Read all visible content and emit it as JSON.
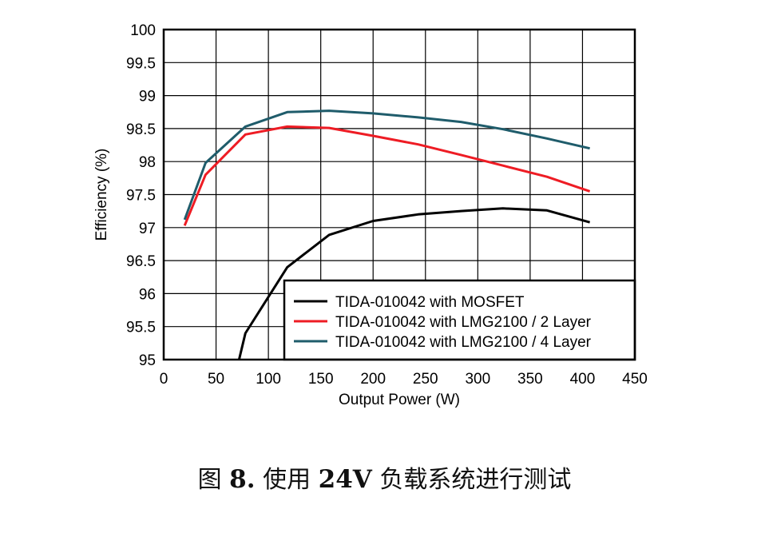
{
  "chart_data": {
    "type": "line",
    "xlabel": "Output Power (W)",
    "ylabel": "Efficiency (%)",
    "xlim": [
      0,
      450
    ],
    "ylim": [
      95,
      100
    ],
    "xticks": [
      "0",
      "50",
      "100",
      "150",
      "200",
      "250",
      "300",
      "350",
      "400",
      "450"
    ],
    "yticks": [
      "95",
      "95.5",
      "96",
      "96.5",
      "97",
      "97.5",
      "98",
      "98.5",
      "99",
      "99.5",
      "100"
    ],
    "grid": true,
    "legend_position": "bottom-right",
    "series": [
      {
        "name": "TIDA-010042 with MOSFET",
        "color": "#000000",
        "points": [
          [
            72,
            95.0
          ],
          [
            78,
            95.4
          ],
          [
            118,
            96.4
          ],
          [
            158,
            96.89
          ],
          [
            200,
            97.1
          ],
          [
            243,
            97.2
          ],
          [
            284,
            97.25
          ],
          [
            324,
            97.29
          ],
          [
            366,
            97.26
          ],
          [
            407,
            97.08
          ]
        ]
      },
      {
        "name": "TIDA-010042 with LMG2100 / 2 Layer",
        "color": "#ee1c24",
        "points": [
          [
            20,
            97.03
          ],
          [
            40,
            97.8
          ],
          [
            78,
            98.41
          ],
          [
            118,
            98.53
          ],
          [
            158,
            98.51
          ],
          [
            200,
            98.39
          ],
          [
            243,
            98.26
          ],
          [
            284,
            98.1
          ],
          [
            324,
            97.94
          ],
          [
            366,
            97.77
          ],
          [
            407,
            97.55
          ]
        ]
      },
      {
        "name": "TIDA-010042 with LMG2100 / 4 Layer",
        "color": "#1f5c6b",
        "points": [
          [
            20,
            97.12
          ],
          [
            40,
            97.98
          ],
          [
            78,
            98.53
          ],
          [
            118,
            98.75
          ],
          [
            158,
            98.77
          ],
          [
            200,
            98.73
          ],
          [
            243,
            98.67
          ],
          [
            284,
            98.6
          ],
          [
            324,
            98.49
          ],
          [
            366,
            98.35
          ],
          [
            407,
            98.2
          ]
        ]
      }
    ]
  },
  "caption": {
    "prefix": "图",
    "figure_number": "8.",
    "text_before": "使用",
    "voltage": "24V",
    "text_after": "负载系统进行测试"
  }
}
